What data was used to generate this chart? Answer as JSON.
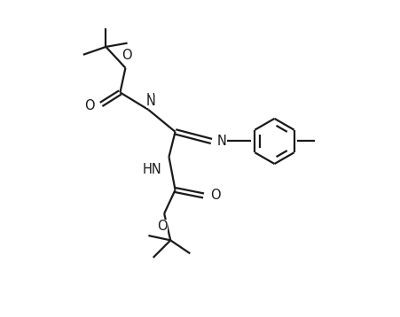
{
  "bg_color": "#ffffff",
  "line_color": "#1a1a1a",
  "line_width": 1.6,
  "font_size": 10.5,
  "figsize": [
    4.52,
    3.58
  ],
  "dpi": 100,
  "xlim": [
    0,
    10
  ],
  "ylim": [
    0,
    10
  ]
}
